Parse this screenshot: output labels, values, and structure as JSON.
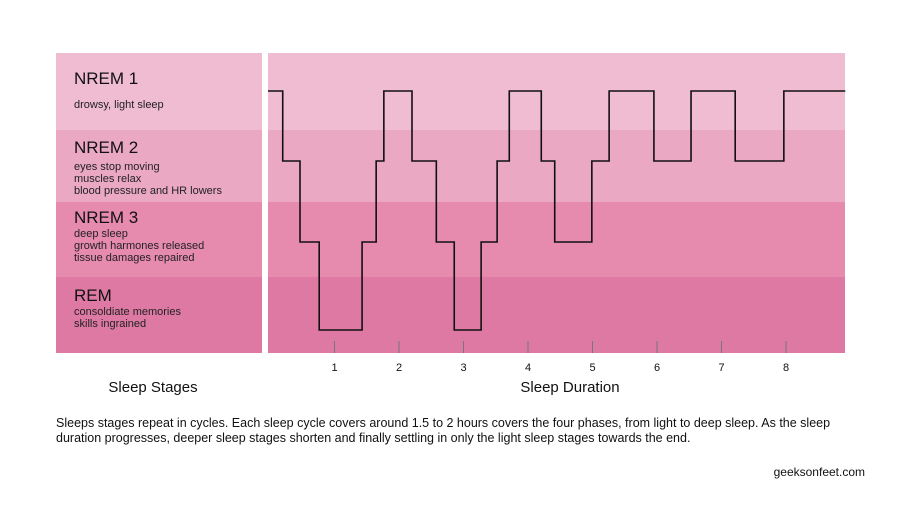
{
  "stages": [
    {
      "name": "NREM 1",
      "desc": [
        "drowsy, light sleep"
      ]
    },
    {
      "name": "NREM 2",
      "desc": [
        "eyes stop moving",
        "muscles relax",
        "blood pressure and HR lowers"
      ]
    },
    {
      "name": "NREM 3",
      "desc": [
        "deep sleep",
        "growth harmones released",
        "tissue damages repaired"
      ]
    },
    {
      "name": "REM",
      "desc": [
        "consoldiate memories",
        "skills ingrained"
      ]
    }
  ],
  "colors": {
    "nrem1": "#efbcd2",
    "nrem2": "#eaa8c3",
    "nrem3": "#e68aae",
    "rem": "#dd79a3",
    "line": "#111111",
    "tick": "#777777"
  },
  "chart_data": {
    "type": "line",
    "step": true,
    "xlabel": "Sleep Duration",
    "ylabel": "Sleep Stages",
    "x_ticks": [
      1,
      2,
      3,
      4,
      5,
      6,
      7,
      8
    ],
    "xlim": [
      0,
      9
    ],
    "y_categories": [
      "NREM 1",
      "NREM 2",
      "NREM 3",
      "REM"
    ],
    "segments": [
      [
        0,
        1
      ],
      [
        0.23,
        2
      ],
      [
        0.5,
        3
      ],
      [
        0.8,
        4
      ],
      [
        1.47,
        3
      ],
      [
        1.69,
        2
      ],
      [
        1.81,
        1
      ],
      [
        2.25,
        2
      ],
      [
        2.63,
        3
      ],
      [
        2.91,
        4
      ],
      [
        3.33,
        3
      ],
      [
        3.58,
        2
      ],
      [
        3.77,
        1
      ],
      [
        4.27,
        2
      ],
      [
        4.48,
        3
      ],
      [
        5.06,
        2
      ],
      [
        5.33,
        1
      ],
      [
        6.03,
        2
      ],
      [
        6.61,
        1
      ],
      [
        7.3,
        2
      ],
      [
        8.06,
        1
      ]
    ],
    "end": 9.02
  },
  "caption": "Sleeps stages repeat in cycles.  Each sleep cycle covers around 1.5 to 2 hours covers the four phases, from light to deep sleep. As the sleep duration progresses, deeper sleep stages shorten and finally settling in only the light sleep stages towards the end.",
  "credit": "geeksonfeet.com"
}
